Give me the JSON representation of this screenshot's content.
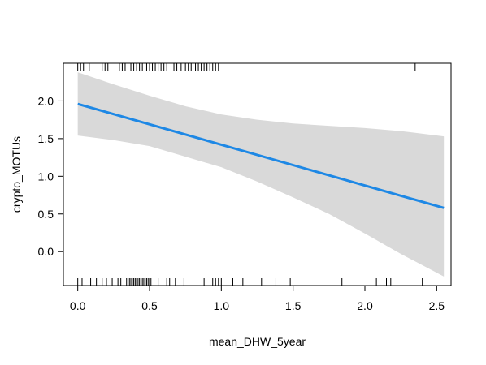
{
  "chart_data": {
    "type": "line",
    "xlabel": "mean_DHW_5year",
    "ylabel": "crypto_MOTUs",
    "xlim": [
      -0.1,
      2.6
    ],
    "ylim": [
      -0.45,
      2.5
    ],
    "xticks": [
      0.0,
      0.5,
      1.0,
      1.5,
      2.0,
      2.5
    ],
    "xtick_labels": [
      "0.0",
      "0.5",
      "1.0",
      "1.5",
      "2.0",
      "2.5"
    ],
    "yticks": [
      0.0,
      0.5,
      1.0,
      1.5,
      2.0
    ],
    "ytick_labels": [
      "0.0",
      "0.5",
      "1.0",
      "1.5",
      "2.0"
    ],
    "grid": false,
    "line_color": "#1e88e5",
    "band_color": "#d9d9d9",
    "fit_line": {
      "x": [
        0.0,
        2.55
      ],
      "y": [
        1.96,
        0.58
      ]
    },
    "confidence_band": {
      "x": [
        0.0,
        0.25,
        0.5,
        0.75,
        1.0,
        1.25,
        1.5,
        1.75,
        2.0,
        2.25,
        2.55
      ],
      "upper": [
        2.38,
        2.22,
        2.07,
        1.93,
        1.82,
        1.75,
        1.7,
        1.67,
        1.64,
        1.6,
        1.53
      ],
      "lower": [
        1.54,
        1.48,
        1.4,
        1.26,
        1.12,
        0.93,
        0.72,
        0.5,
        0.24,
        -0.03,
        -0.33
      ]
    },
    "rug_top_x": [
      0.0,
      0.02,
      0.04,
      0.08,
      0.17,
      0.19,
      0.21,
      0.29,
      0.31,
      0.33,
      0.35,
      0.37,
      0.39,
      0.41,
      0.43,
      0.45,
      0.48,
      0.5,
      0.52,
      0.54,
      0.56,
      0.58,
      0.6,
      0.62,
      0.65,
      0.67,
      0.69,
      0.72,
      0.75,
      0.77,
      0.79,
      0.82,
      0.84,
      0.86,
      0.88,
      0.9,
      0.92,
      0.94,
      0.96,
      0.98,
      2.35
    ],
    "rug_bottom_x": [
      0.0,
      0.03,
      0.05,
      0.09,
      0.13,
      0.17,
      0.2,
      0.24,
      0.28,
      0.3,
      0.34,
      0.36,
      0.37,
      0.38,
      0.39,
      0.4,
      0.41,
      0.42,
      0.43,
      0.44,
      0.45,
      0.46,
      0.47,
      0.48,
      0.49,
      0.5,
      0.51,
      0.56,
      0.62,
      0.64,
      0.68,
      0.74,
      0.88,
      0.94,
      0.96,
      0.98,
      1.0,
      1.08,
      1.15,
      1.28,
      1.38,
      1.48,
      1.84,
      2.08,
      2.15,
      2.18,
      2.4
    ]
  }
}
